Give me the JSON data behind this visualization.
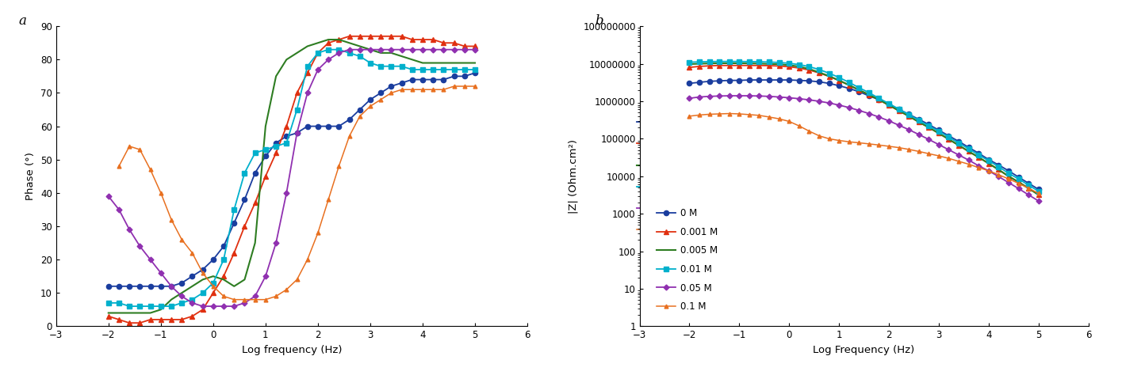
{
  "plot_a": {
    "xlabel": "Log frequency (Hz)",
    "ylabel": "Phase (°)",
    "xlim": [
      -3,
      6
    ],
    "ylim": [
      0,
      90
    ],
    "xticks": [
      -3,
      -2,
      -1,
      0,
      1,
      2,
      3,
      4,
      5,
      6
    ],
    "yticks": [
      0,
      10,
      20,
      30,
      40,
      50,
      60,
      70,
      80,
      90
    ],
    "series": {
      "0M": {
        "color": "#1a3d9e",
        "marker": "o",
        "markersize": 4.5,
        "linewidth": 1.3,
        "x": [
          -2.0,
          -1.8,
          -1.6,
          -1.4,
          -1.2,
          -1.0,
          -0.8,
          -0.6,
          -0.4,
          -0.2,
          0.0,
          0.2,
          0.4,
          0.6,
          0.8,
          1.0,
          1.2,
          1.4,
          1.6,
          1.8,
          2.0,
          2.2,
          2.4,
          2.6,
          2.8,
          3.0,
          3.2,
          3.4,
          3.6,
          3.8,
          4.0,
          4.2,
          4.4,
          4.6,
          4.8,
          5.0
        ],
        "y": [
          12,
          12,
          12,
          12,
          12,
          12,
          12,
          13,
          15,
          17,
          20,
          24,
          31,
          38,
          46,
          51,
          55,
          57,
          58,
          60,
          60,
          60,
          60,
          62,
          65,
          68,
          70,
          72,
          73,
          74,
          74,
          74,
          74,
          75,
          75,
          76
        ]
      },
      "0.001M": {
        "color": "#e03010",
        "marker": "^",
        "markersize": 4.5,
        "linewidth": 1.3,
        "x": [
          -2.0,
          -1.8,
          -1.6,
          -1.4,
          -1.2,
          -1.0,
          -0.8,
          -0.6,
          -0.4,
          -0.2,
          0.0,
          0.2,
          0.4,
          0.6,
          0.8,
          1.0,
          1.2,
          1.4,
          1.6,
          1.8,
          2.0,
          2.2,
          2.4,
          2.6,
          2.8,
          3.0,
          3.2,
          3.4,
          3.6,
          3.8,
          4.0,
          4.2,
          4.4,
          4.6,
          4.8,
          5.0
        ],
        "y": [
          3,
          2,
          1,
          1,
          2,
          2,
          2,
          2,
          3,
          5,
          10,
          15,
          22,
          30,
          37,
          45,
          52,
          60,
          70,
          76,
          82,
          85,
          86,
          87,
          87,
          87,
          87,
          87,
          87,
          86,
          86,
          86,
          85,
          85,
          84,
          84
        ]
      },
      "0.005M": {
        "color": "#2e7d22",
        "marker": "None",
        "markersize": 4,
        "linewidth": 1.5,
        "x": [
          -2.0,
          -1.8,
          -1.6,
          -1.4,
          -1.2,
          -1.0,
          -0.8,
          -0.6,
          -0.4,
          -0.2,
          0.0,
          0.2,
          0.4,
          0.6,
          0.8,
          1.0,
          1.2,
          1.4,
          1.6,
          1.8,
          2.0,
          2.2,
          2.4,
          2.6,
          2.8,
          3.0,
          3.2,
          3.4,
          3.6,
          3.8,
          4.0,
          4.2,
          4.4,
          4.6,
          4.8,
          5.0
        ],
        "y": [
          4,
          4,
          4,
          4,
          4,
          5,
          8,
          10,
          12,
          14,
          15,
          14,
          12,
          14,
          25,
          60,
          75,
          80,
          82,
          84,
          85,
          86,
          86,
          85,
          84,
          83,
          82,
          82,
          81,
          80,
          79,
          79,
          79,
          79,
          79,
          79
        ]
      },
      "0.01M": {
        "color": "#00b0cc",
        "marker": "s",
        "markersize": 4,
        "linewidth": 1.3,
        "x": [
          -2.0,
          -1.8,
          -1.6,
          -1.4,
          -1.2,
          -1.0,
          -0.8,
          -0.6,
          -0.4,
          -0.2,
          0.0,
          0.2,
          0.4,
          0.6,
          0.8,
          1.0,
          1.2,
          1.4,
          1.6,
          1.8,
          2.0,
          2.2,
          2.4,
          2.6,
          2.8,
          3.0,
          3.2,
          3.4,
          3.6,
          3.8,
          4.0,
          4.2,
          4.4,
          4.6,
          4.8,
          5.0
        ],
        "y": [
          7,
          7,
          6,
          6,
          6,
          6,
          6,
          7,
          8,
          10,
          13,
          20,
          35,
          46,
          52,
          53,
          54,
          55,
          65,
          78,
          82,
          83,
          83,
          82,
          81,
          79,
          78,
          78,
          78,
          77,
          77,
          77,
          77,
          77,
          77,
          77
        ]
      },
      "0.05M": {
        "color": "#9030b0",
        "marker": "D",
        "markersize": 3.5,
        "linewidth": 1.3,
        "x": [
          -2.0,
          -1.8,
          -1.6,
          -1.4,
          -1.2,
          -1.0,
          -0.8,
          -0.6,
          -0.4,
          -0.2,
          0.0,
          0.2,
          0.4,
          0.6,
          0.8,
          1.0,
          1.2,
          1.4,
          1.6,
          1.8,
          2.0,
          2.2,
          2.4,
          2.6,
          2.8,
          3.0,
          3.2,
          3.4,
          3.6,
          3.8,
          4.0,
          4.2,
          4.4,
          4.6,
          4.8,
          5.0
        ],
        "y": [
          39,
          35,
          29,
          24,
          20,
          16,
          12,
          9,
          7,
          6,
          6,
          6,
          6,
          7,
          9,
          15,
          25,
          40,
          58,
          70,
          77,
          80,
          82,
          83,
          83,
          83,
          83,
          83,
          83,
          83,
          83,
          83,
          83,
          83,
          83,
          83
        ]
      },
      "0.1M": {
        "color": "#e87020",
        "marker": "^",
        "markersize": 3.5,
        "linewidth": 1.1,
        "x": [
          -1.8,
          -1.6,
          -1.4,
          -1.2,
          -1.0,
          -0.8,
          -0.6,
          -0.4,
          -0.2,
          0.0,
          0.2,
          0.4,
          0.6,
          0.8,
          1.0,
          1.2,
          1.4,
          1.6,
          1.8,
          2.0,
          2.2,
          2.4,
          2.6,
          2.8,
          3.0,
          3.2,
          3.4,
          3.6,
          3.8,
          4.0,
          4.2,
          4.4,
          4.6,
          4.8,
          5.0
        ],
        "y": [
          48,
          54,
          53,
          47,
          40,
          32,
          26,
          22,
          16,
          12,
          9,
          8,
          8,
          8,
          8,
          9,
          11,
          14,
          20,
          28,
          38,
          48,
          57,
          63,
          66,
          68,
          70,
          71,
          71,
          71,
          71,
          71,
          72,
          72,
          72
        ]
      }
    },
    "legend_labels": [
      "0 M",
      "0.001 M",
      "0.005 M",
      "0.01 M",
      "0.05 M",
      "0.1 M"
    ]
  },
  "plot_b": {
    "xlabel": "Log Frequency (Hz)",
    "ylabel": "|Z| (Ohm.cm²)",
    "xlim": [
      -3,
      6
    ],
    "xticks": [
      -3,
      -2,
      -1,
      0,
      1,
      2,
      3,
      4,
      5,
      6
    ],
    "series": {
      "0M": {
        "color": "#1a3d9e",
        "marker": "o",
        "markersize": 4.5,
        "linewidth": 1.3,
        "x": [
          -2.0,
          -1.8,
          -1.6,
          -1.4,
          -1.2,
          -1.0,
          -0.8,
          -0.6,
          -0.4,
          -0.2,
          0.0,
          0.2,
          0.4,
          0.6,
          0.8,
          1.0,
          1.2,
          1.4,
          1.6,
          1.8,
          2.0,
          2.2,
          2.4,
          2.6,
          2.8,
          3.0,
          3.2,
          3.4,
          3.6,
          3.8,
          4.0,
          4.2,
          4.4,
          4.6,
          4.8,
          5.0
        ],
        "y": [
          3000000,
          3200000,
          3400000,
          3500000,
          3600000,
          3600000,
          3700000,
          3700000,
          3700000,
          3700000,
          3700000,
          3600000,
          3500000,
          3300000,
          3000000,
          2600000,
          2200000,
          1800000,
          1400000,
          1100000,
          820000,
          610000,
          450000,
          330000,
          240000,
          170000,
          120000,
          85000,
          59000,
          41000,
          28000,
          20000,
          14000,
          9500,
          6500,
          4500
        ]
      },
      "0.001M": {
        "color": "#e03010",
        "marker": "^",
        "markersize": 4.5,
        "linewidth": 1.3,
        "x": [
          -2.0,
          -1.8,
          -1.6,
          -1.4,
          -1.2,
          -1.0,
          -0.8,
          -0.6,
          -0.4,
          -0.2,
          0.0,
          0.2,
          0.4,
          0.6,
          0.8,
          1.0,
          1.2,
          1.4,
          1.6,
          1.8,
          2.0,
          2.2,
          2.4,
          2.6,
          2.8,
          3.0,
          3.2,
          3.4,
          3.6,
          3.8,
          4.0,
          4.2,
          4.4,
          4.6,
          4.8,
          5.0
        ],
        "y": [
          8000000,
          8500000,
          8800000,
          9000000,
          9000000,
          9000000,
          9000000,
          9000000,
          8900000,
          8700000,
          8300000,
          7700000,
          6800000,
          5700000,
          4600000,
          3600000,
          2700000,
          2000000,
          1500000,
          1100000,
          780000,
          560000,
          400000,
          280000,
          200000,
          140000,
          97000,
          67000,
          46000,
          32000,
          22000,
          15000,
          10000,
          7000,
          4800,
          3200
        ]
      },
      "0.005M": {
        "color": "#2e7d22",
        "marker": "None",
        "markersize": 4,
        "linewidth": 1.5,
        "x": [
          -2.0,
          -1.8,
          -1.6,
          -1.4,
          -1.2,
          -1.0,
          -0.8,
          -0.6,
          -0.4,
          -0.2,
          0.0,
          0.2,
          0.4,
          0.6,
          0.8,
          1.0,
          1.2,
          1.4,
          1.6,
          1.8,
          2.0,
          2.2,
          2.4,
          2.6,
          2.8,
          3.0,
          3.2,
          3.4,
          3.6,
          3.8,
          4.0,
          4.2,
          4.4,
          4.6,
          4.8,
          5.0
        ],
        "y": [
          9800000,
          10000000,
          10200000,
          10300000,
          10300000,
          10300000,
          10200000,
          10100000,
          9900000,
          9700000,
          9200000,
          8400000,
          7300000,
          5900000,
          4700000,
          3600000,
          2700000,
          2000000,
          1500000,
          1100000,
          790000,
          560000,
          400000,
          280000,
          200000,
          140000,
          97000,
          67000,
          46000,
          32000,
          22000,
          15000,
          10000,
          7000,
          4800,
          3200
        ]
      },
      "0.01M": {
        "color": "#00b0cc",
        "marker": "s",
        "markersize": 4,
        "linewidth": 1.3,
        "x": [
          -2.0,
          -1.8,
          -1.6,
          -1.4,
          -1.2,
          -1.0,
          -0.8,
          -0.6,
          -0.4,
          -0.2,
          0.0,
          0.2,
          0.4,
          0.6,
          0.8,
          1.0,
          1.2,
          1.4,
          1.6,
          1.8,
          2.0,
          2.2,
          2.4,
          2.6,
          2.8,
          3.0,
          3.2,
          3.4,
          3.6,
          3.8,
          4.0,
          4.2,
          4.4,
          4.6,
          4.8,
          5.0
        ],
        "y": [
          11000000,
          11200000,
          11400000,
          11500000,
          11500000,
          11500000,
          11400000,
          11300000,
          11100000,
          10800000,
          10300000,
          9500000,
          8400000,
          7000000,
          5600000,
          4300000,
          3200000,
          2300000,
          1700000,
          1200000,
          870000,
          620000,
          440000,
          310000,
          220000,
          160000,
          110000,
          77000,
          54000,
          37000,
          26000,
          18000,
          12000,
          8500,
          5800,
          4000
        ]
      },
      "0.05M": {
        "color": "#9030b0",
        "marker": "D",
        "markersize": 3.5,
        "linewidth": 1.3,
        "x": [
          -2.0,
          -1.8,
          -1.6,
          -1.4,
          -1.2,
          -1.0,
          -0.8,
          -0.6,
          -0.4,
          -0.2,
          0.0,
          0.2,
          0.4,
          0.6,
          0.8,
          1.0,
          1.2,
          1.4,
          1.6,
          1.8,
          2.0,
          2.2,
          2.4,
          2.6,
          2.8,
          3.0,
          3.2,
          3.4,
          3.6,
          3.8,
          4.0,
          4.2,
          4.4,
          4.6,
          4.8,
          5.0
        ],
        "y": [
          1200000,
          1300000,
          1350000,
          1380000,
          1400000,
          1400000,
          1400000,
          1380000,
          1350000,
          1300000,
          1240000,
          1170000,
          1090000,
          1000000,
          900000,
          790000,
          680000,
          570000,
          470000,
          380000,
          300000,
          230000,
          175000,
          130000,
          96000,
          70000,
          51000,
          37000,
          27000,
          19000,
          14000,
          9800,
          6800,
          4700,
          3200,
          2200
        ]
      },
      "0.1M": {
        "color": "#e87020",
        "marker": "^",
        "markersize": 3.5,
        "linewidth": 1.1,
        "x": [
          -2.0,
          -1.8,
          -1.6,
          -1.4,
          -1.2,
          -1.0,
          -0.8,
          -0.6,
          -0.4,
          -0.2,
          0.0,
          0.2,
          0.4,
          0.6,
          0.8,
          1.0,
          1.2,
          1.4,
          1.6,
          1.8,
          2.0,
          2.2,
          2.4,
          2.6,
          2.8,
          3.0,
          3.2,
          3.4,
          3.6,
          3.8,
          4.0,
          4.2,
          4.4,
          4.6,
          4.8,
          5.0
        ],
        "y": [
          400000,
          430000,
          450000,
          460000,
          470000,
          460000,
          440000,
          420000,
          380000,
          340000,
          290000,
          220000,
          160000,
          120000,
          100000,
          90000,
          83000,
          78000,
          73000,
          68000,
          63000,
          58000,
          52000,
          46000,
          40000,
          35000,
          30000,
          25000,
          21000,
          17000,
          14000,
          11000,
          8500,
          6500,
          4800,
          3500
        ]
      }
    },
    "legend_labels": [
      "0 M",
      "0.001 M",
      "0.005 M",
      "0.01 M",
      "0.05 M",
      "0.1 M"
    ]
  }
}
